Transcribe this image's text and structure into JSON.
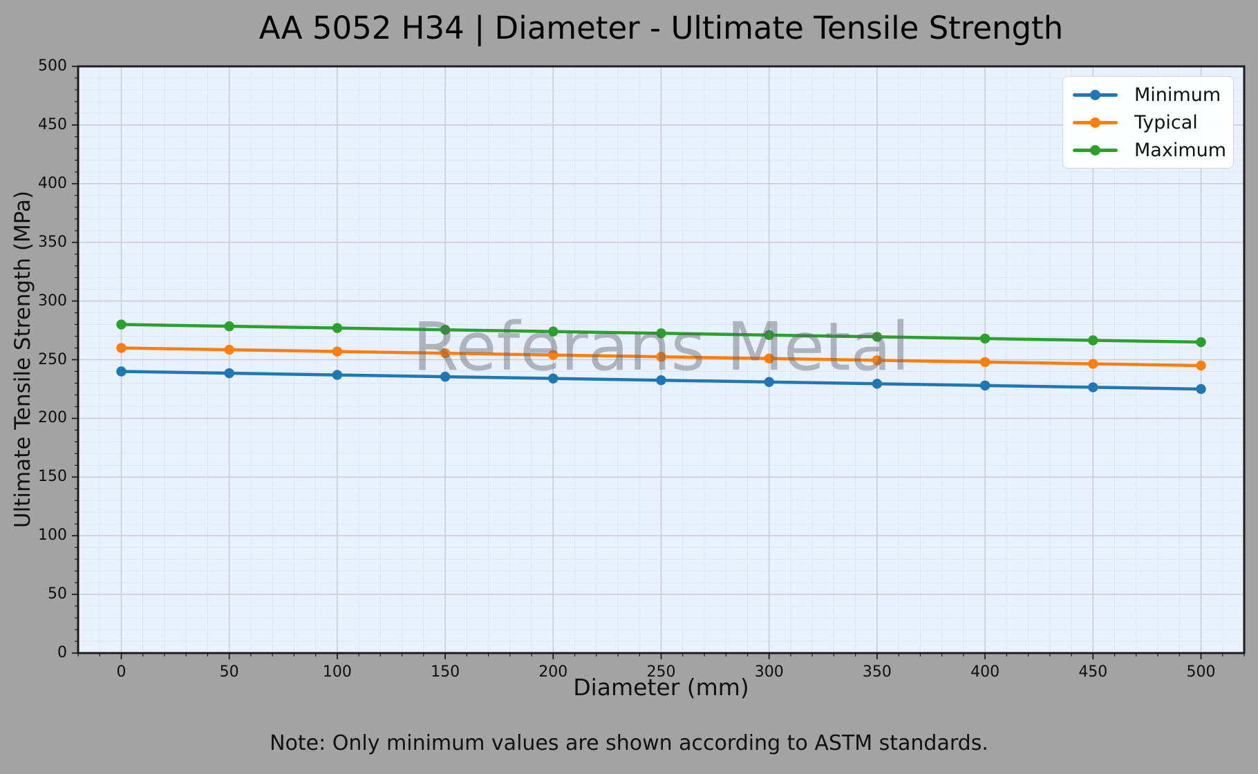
{
  "figure": {
    "background": "#a3a3a3",
    "watermark": "Referans Metal",
    "note": "Note: Only minimum values are shown according to ASTM standards."
  },
  "chart_data": {
    "type": "line",
    "title": "AA 5052 H34 | Diameter - Ultimate Tensile Strength",
    "xlabel": "Diameter (mm)",
    "ylabel": "Ultimate Tensile Strength (MPa)",
    "x": [
      0,
      50,
      100,
      150,
      200,
      250,
      300,
      350,
      400,
      450,
      500
    ],
    "series": [
      {
        "name": "Minimum",
        "color": "#1f77b4",
        "values": [
          240,
          238.5,
          237,
          235.5,
          234,
          232.5,
          231,
          229.5,
          228,
          226.5,
          225
        ]
      },
      {
        "name": "Typical",
        "color": "#ff7f0e",
        "values": [
          260,
          258.5,
          257,
          255.5,
          254,
          252.5,
          251,
          249.5,
          248,
          246.5,
          245
        ]
      },
      {
        "name": "Maximum",
        "color": "#2ca02c",
        "values": [
          280,
          278.5,
          277,
          275.5,
          274,
          272.5,
          271,
          269.5,
          268,
          266.5,
          265
        ]
      }
    ],
    "xlim": [
      -20,
      520
    ],
    "ylim": [
      0,
      500
    ],
    "xticks": [
      0,
      50,
      100,
      150,
      200,
      250,
      300,
      350,
      400,
      450,
      500
    ],
    "yticks": [
      0,
      50,
      100,
      150,
      200,
      250,
      300,
      350,
      400,
      450,
      500
    ],
    "minor_step_x": 10,
    "minor_step_y": 10,
    "grid": "major+minor",
    "legend_position": "upper right",
    "plot_background": "#e9f1fc",
    "major_grid_color": "#c9ced6",
    "minor_grid_color": "#dce6f2",
    "spine_color": "#1c1c1c",
    "watermark": "Referans Metal",
    "note": "Note: Only minimum values are shown according to ASTM standards."
  },
  "legend": {
    "entries": [
      "Minimum",
      "Typical",
      "Maximum"
    ]
  }
}
